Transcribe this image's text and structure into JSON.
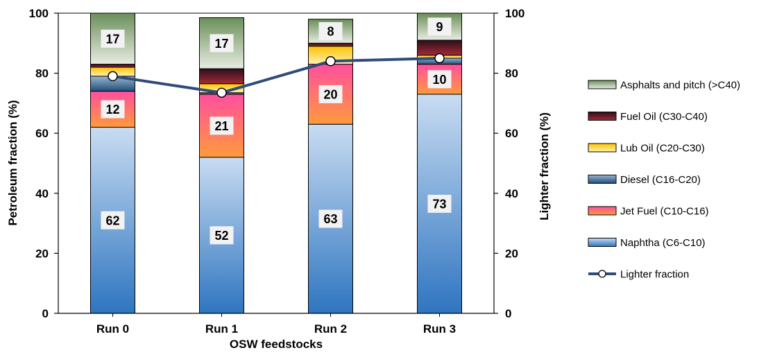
{
  "chart_data": {
    "type": "bar",
    "stacked": true,
    "categories": [
      "Run 0",
      "Run 1",
      "Run 2",
      "Run 3"
    ],
    "xlabel": "OSW feedstocks",
    "ylabel": "Petroleum fraction (%)",
    "y2label": "Lighter fraction (%)",
    "ylim": [
      0,
      100
    ],
    "y2lim": [
      0,
      100
    ],
    "yticks": [
      "0",
      "20",
      "40",
      "60",
      "80",
      "100"
    ],
    "y2ticks": [
      "0",
      "20",
      "40",
      "60",
      "80",
      "100"
    ],
    "legend_position": "right",
    "series": [
      {
        "name": "Naphtha (C6-C10)",
        "values": [
          62,
          52,
          63,
          73
        ],
        "color_top": "#c9dcf2",
        "color_bottom": "#2e75c0"
      },
      {
        "name": "Jet Fuel (C10-C16)",
        "values": [
          12,
          21,
          20,
          10
        ],
        "color_top": "#ff4f9e",
        "color_bottom": "#ff9a3c"
      },
      {
        "name": "Diesel (C16-C20)",
        "values": [
          5,
          0.5,
          0,
          2
        ],
        "color_top": "#9ab6d2",
        "color_bottom": "#1f4e79"
      },
      {
        "name": "Lub Oil (C20-C30)",
        "values": [
          3,
          3,
          6,
          1
        ],
        "color_top": "#ffc000",
        "color_bottom": "#fff2b0"
      },
      {
        "name": "Fuel Oil (C30-C40)",
        "values": [
          1,
          5,
          1,
          5
        ],
        "color_top": "#2b0f1c",
        "color_bottom": "#a22a36"
      },
      {
        "name": "Asphalts and pitch (>C40)",
        "values": [
          17,
          17,
          8,
          9
        ],
        "color_top": "#6a8f5a",
        "color_bottom": "#e8ece2"
      }
    ],
    "data_labels": [
      {
        "category": "Run 0",
        "series": "Naphtha (C6-C10)",
        "text": "62"
      },
      {
        "category": "Run 0",
        "series": "Jet Fuel (C10-C16)",
        "text": "12"
      },
      {
        "category": "Run 0",
        "series": "Asphalts and pitch (>C40)",
        "text": "17"
      },
      {
        "category": "Run 1",
        "series": "Naphtha (C6-C10)",
        "text": "52"
      },
      {
        "category": "Run 1",
        "series": "Jet Fuel (C10-C16)",
        "text": "21"
      },
      {
        "category": "Run 1",
        "series": "Asphalts and pitch (>C40)",
        "text": "17"
      },
      {
        "category": "Run 2",
        "series": "Naphtha (C6-C10)",
        "text": "63"
      },
      {
        "category": "Run 2",
        "series": "Jet Fuel (C10-C16)",
        "text": "20"
      },
      {
        "category": "Run 2",
        "series": "Asphalts and pitch (>C40)",
        "text": "8"
      },
      {
        "category": "Run 3",
        "series": "Naphtha (C6-C10)",
        "text": "73"
      },
      {
        "category": "Run 3",
        "series": "Jet Fuel (C10-C16)",
        "text": "10"
      },
      {
        "category": "Run 3",
        "series": "Asphalts and pitch (>C40)",
        "text": "9"
      }
    ],
    "line_series": {
      "name": "Lighter fraction",
      "axis": "secondary",
      "values": [
        79,
        73.5,
        84,
        85
      ],
      "color": "#2f4b7c"
    }
  }
}
